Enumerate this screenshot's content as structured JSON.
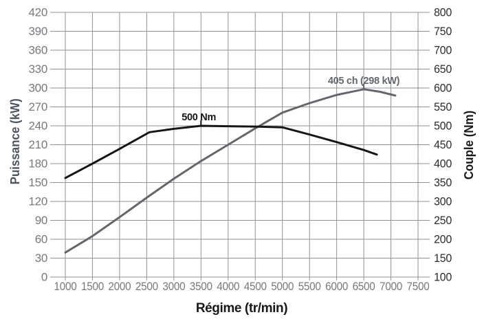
{
  "chart_data": {
    "type": "line",
    "title": "",
    "xlabel": "Régime (tr/min)",
    "grid": true,
    "legend": "none",
    "x_axis": {
      "min": 1000,
      "max": 7500,
      "ticks": [
        1000,
        1500,
        2000,
        2500,
        3000,
        3500,
        4000,
        4500,
        5000,
        5500,
        6000,
        6500,
        7000,
        7500
      ]
    },
    "y_left": {
      "label": "Puissance (kW)",
      "min": 0,
      "max": 420,
      "ticks": [
        0,
        30,
        60,
        90,
        120,
        150,
        180,
        210,
        240,
        270,
        300,
        330,
        360,
        390,
        420
      ]
    },
    "y_right": {
      "label": "Couple (Nm)",
      "min": 100,
      "max": 800,
      "ticks": [
        100,
        150,
        200,
        250,
        300,
        350,
        400,
        450,
        500,
        550,
        600,
        650,
        700,
        750,
        800
      ]
    },
    "colors": {
      "background": "#ffffff",
      "grid": "#8f9193",
      "left_tick_labels": "#75797e",
      "x_tick_labels": "#75797e",
      "right_tick_labels": "#2a2c2e",
      "left_axis_title": "#4e5561",
      "right_axis_title": "#17181a",
      "power_series": "#63676d",
      "torque_series": "#161616"
    },
    "series": [
      {
        "name": "puissance",
        "axis": "left",
        "color": "#63676d",
        "peak": [
          6500,
          298
        ],
        "annotation": {
          "text": "405 ch (298 kW)",
          "x": 6500,
          "y": 298
        },
        "points": [
          [
            1000,
            39
          ],
          [
            1500,
            65
          ],
          [
            2000,
            95
          ],
          [
            2500,
            126
          ],
          [
            3000,
            156
          ],
          [
            3500,
            184
          ],
          [
            4000,
            210
          ],
          [
            4500,
            236
          ],
          [
            5000,
            261
          ],
          [
            5500,
            276
          ],
          [
            6000,
            289
          ],
          [
            6500,
            298
          ],
          [
            6800,
            294
          ],
          [
            7080,
            288
          ]
        ]
      },
      {
        "name": "couple",
        "axis": "right",
        "color": "#161616",
        "peak": [
          3500,
          500
        ],
        "annotation": {
          "text": "500 Nm",
          "x": 3460,
          "y": 500
        },
        "points": [
          [
            1000,
            362
          ],
          [
            1500,
            400
          ],
          [
            2000,
            439
          ],
          [
            2550,
            483
          ],
          [
            3000,
            492
          ],
          [
            3500,
            500
          ],
          [
            4000,
            499
          ],
          [
            4500,
            498
          ],
          [
            5000,
            496
          ],
          [
            5500,
            477
          ],
          [
            6000,
            457
          ],
          [
            6500,
            436
          ],
          [
            6740,
            424
          ]
        ]
      }
    ]
  }
}
